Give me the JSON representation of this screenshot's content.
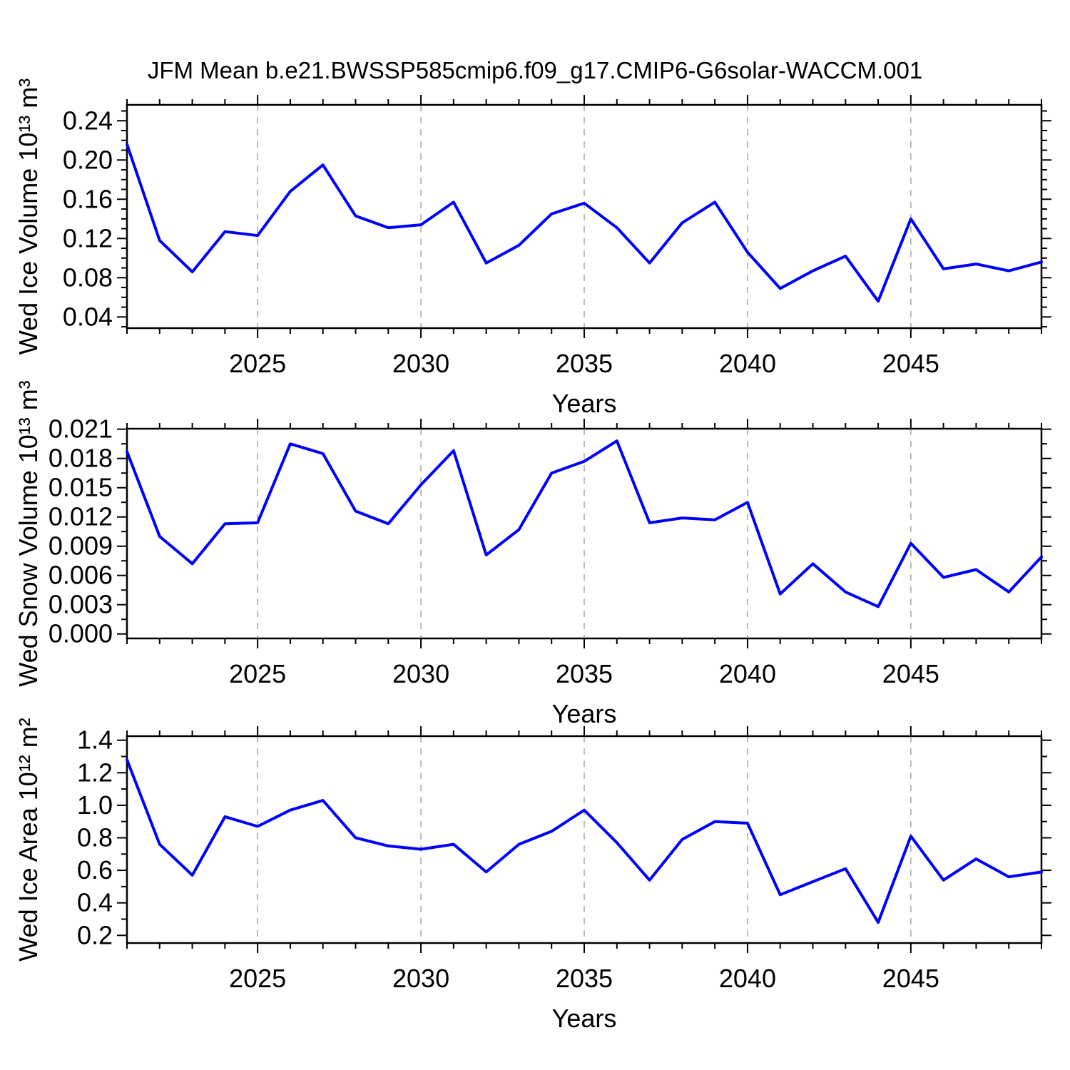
{
  "page": {
    "title": "JFM Mean b.e21.BWSSP585cmip6.f09_g17.CMIP6-G6solar-WACCM.001",
    "background": "#ffffff",
    "line_color": "#0000ff",
    "gridline_color": "#a6a6a6",
    "frame_color": "#000000"
  },
  "chart_data": [
    {
      "type": "line",
      "series_name": "Wed Ice Volume",
      "ylabel": "Wed Ice Volume 10¹³ m³",
      "xlabel": "Years",
      "x": [
        2021,
        2022,
        2023,
        2024,
        2025,
        2026,
        2027,
        2028,
        2029,
        2030,
        2031,
        2032,
        2033,
        2034,
        2035,
        2036,
        2037,
        2038,
        2039,
        2040,
        2041,
        2042,
        2043,
        2044,
        2045,
        2046,
        2047,
        2048,
        2049
      ],
      "values": [
        0.216,
        0.118,
        0.086,
        0.127,
        0.123,
        0.168,
        0.195,
        0.143,
        0.131,
        0.134,
        0.157,
        0.095,
        0.113,
        0.145,
        0.156,
        0.131,
        0.095,
        0.136,
        0.157,
        0.106,
        0.069,
        0.087,
        0.102,
        0.056,
        0.14,
        0.089,
        0.094,
        0.087,
        0.096
      ],
      "xlim": [
        2021,
        2049
      ],
      "ylim": [
        0.0286,
        0.2562
      ],
      "yticks": [
        0.04,
        0.08,
        0.12,
        0.16,
        0.2,
        0.24
      ],
      "ytick_labels": [
        "0.04",
        "0.08",
        "0.12",
        "0.16",
        "0.20",
        "0.24"
      ],
      "y_minor_step": 0.01,
      "xticks": [
        2025,
        2030,
        2035,
        2040,
        2045
      ],
      "xtick_labels": [
        "2025",
        "2030",
        "2035",
        "2040",
        "2045"
      ],
      "x_minor_step": 1,
      "grid": "dashed vertical lines at major x ticks",
      "legend": "none"
    },
    {
      "type": "line",
      "series_name": "Wed Snow Volume",
      "ylabel": "Wed Snow Volume 10¹³ m³",
      "xlabel": "Years",
      "x": [
        2021,
        2022,
        2023,
        2024,
        2025,
        2026,
        2027,
        2028,
        2029,
        2030,
        2031,
        2032,
        2033,
        2034,
        2035,
        2036,
        2037,
        2038,
        2039,
        2040,
        2041,
        2042,
        2043,
        2044,
        2045,
        2046,
        2047,
        2048,
        2049
      ],
      "values": [
        0.0187,
        0.01,
        0.0072,
        0.0113,
        0.0114,
        0.0195,
        0.0185,
        0.0126,
        0.0113,
        0.0153,
        0.0188,
        0.0081,
        0.0107,
        0.0165,
        0.0177,
        0.0198,
        0.0114,
        0.0119,
        0.0117,
        0.0135,
        0.0041,
        0.0072,
        0.0043,
        0.0028,
        0.0093,
        0.0058,
        0.0066,
        0.0043,
        0.0079
      ],
      "xlim": [
        2021,
        2049
      ],
      "ylim": [
        -0.00046,
        0.02105
      ],
      "yticks": [
        0.0,
        0.003,
        0.006,
        0.009,
        0.012,
        0.015,
        0.018,
        0.021
      ],
      "ytick_labels": [
        "0.000",
        "0.003",
        "0.006",
        "0.009",
        "0.012",
        "0.015",
        "0.018",
        "0.021"
      ],
      "y_minor_step": 0.0015,
      "xticks": [
        2025,
        2030,
        2035,
        2040,
        2045
      ],
      "xtick_labels": [
        "2025",
        "2030",
        "2035",
        "2040",
        "2045"
      ],
      "x_minor_step": 1,
      "grid": "dashed vertical lines at major x ticks",
      "legend": "none"
    },
    {
      "type": "line",
      "series_name": "Wed Ice Area",
      "ylabel": "Wed Ice Area 10¹² m²",
      "xlabel": "Years",
      "x": [
        2021,
        2022,
        2023,
        2024,
        2025,
        2026,
        2027,
        2028,
        2029,
        2030,
        2031,
        2032,
        2033,
        2034,
        2035,
        2036,
        2037,
        2038,
        2039,
        2040,
        2041,
        2042,
        2043,
        2044,
        2045,
        2046,
        2047,
        2048,
        2049
      ],
      "values": [
        1.28,
        0.76,
        0.57,
        0.93,
        0.87,
        0.97,
        1.03,
        0.8,
        0.75,
        0.73,
        0.76,
        0.59,
        0.76,
        0.84,
        0.97,
        0.77,
        0.54,
        0.79,
        0.9,
        0.89,
        0.45,
        0.53,
        0.61,
        0.28,
        0.81,
        0.54,
        0.67,
        0.56,
        0.59
      ],
      "xlim": [
        2021,
        2049
      ],
      "ylim": [
        0.153,
        1.425
      ],
      "yticks": [
        0.2,
        0.4,
        0.6,
        0.8,
        1.0,
        1.2,
        1.4
      ],
      "ytick_labels": [
        "0.2",
        "0.4",
        "0.6",
        "0.8",
        "1.0",
        "1.2",
        "1.4"
      ],
      "y_minor_step": 0.1,
      "xticks": [
        2025,
        2030,
        2035,
        2040,
        2045
      ],
      "xtick_labels": [
        "2025",
        "2030",
        "2035",
        "2040",
        "2045"
      ],
      "x_minor_step": 1,
      "grid": "dashed vertical lines at major x ticks",
      "legend": "none"
    }
  ]
}
